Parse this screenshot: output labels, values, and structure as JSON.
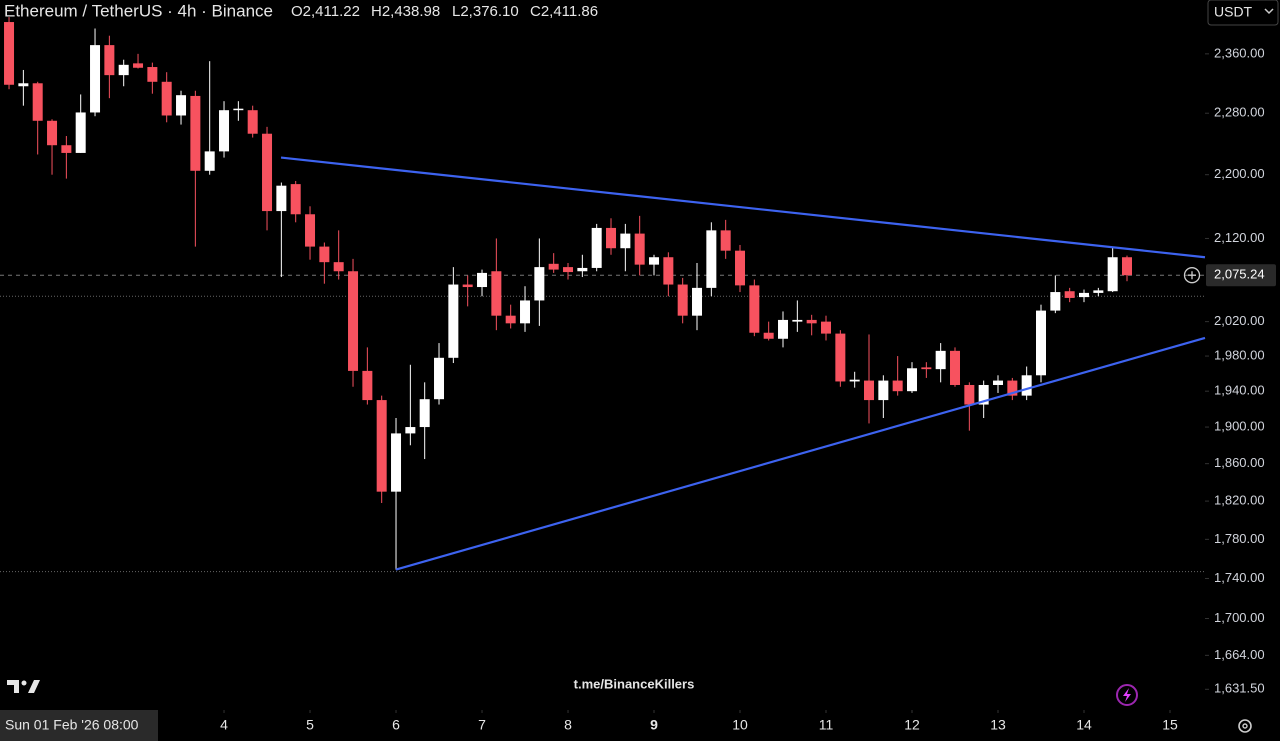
{
  "chart_data": {
    "type": "candlestick",
    "title": "Ethereum / TetherUS · 4h · Binance",
    "ohlc_header": [
      "O2,411.22",
      "H2,438.98",
      "L2,376.10",
      "C2,411.86"
    ],
    "currency": "USDT",
    "watermark": "t.me/BinanceKillers",
    "crosshair_date": "Sun 01 Feb '26 08:00",
    "log_scale": true,
    "up_color": "#ffffff",
    "down_color": "#f7525f",
    "x": [
      1.5,
      1.6667,
      1.8333,
      2,
      2.1667,
      2.3333,
      2.5,
      2.6667,
      2.8333,
      3,
      3.1667,
      3.3333,
      3.5,
      3.6667,
      3.8333,
      4,
      4.1667,
      4.3333,
      4.5,
      4.6667,
      4.8333,
      5,
      5.1667,
      5.3333,
      5.5,
      5.6667,
      5.8333,
      6,
      6.1667,
      6.3333,
      6.5,
      6.6667,
      6.8333,
      7,
      7.1667,
      7.3333,
      7.5,
      7.6667,
      7.8333,
      8,
      8.1667,
      8.3333,
      8.5,
      8.6667,
      8.8333,
      9,
      9.1667,
      9.3333,
      9.5,
      9.6667,
      9.8333,
      10,
      10.1667,
      10.3333,
      10.5,
      10.6667,
      10.8333,
      11,
      11.1667,
      11.3333,
      11.5,
      11.6667,
      11.8333,
      12,
      12.1667,
      12.3333,
      12.5,
      12.6667,
      12.8333,
      13,
      13.1667,
      13.3333,
      13.5,
      13.6667,
      13.8333,
      14,
      14.1667,
      14.3333,
      14.5
    ],
    "open": [
      2404,
      2316,
      2320,
      2270,
      2238,
      2228,
      2281,
      2372,
      2331,
      2347,
      2342,
      2322,
      2277,
      2303,
      2205,
      2230,
      2284,
      2284,
      2253,
      2154,
      2188,
      2150,
      2110,
      2091,
      2080,
      1963,
      1930,
      1830,
      1893,
      1900,
      1931,
      1978,
      2064,
      2061,
      2080,
      2027,
      2018,
      2045,
      2089,
      2085,
      2080,
      2084,
      2133,
      2108,
      2126,
      2088,
      2097,
      2064,
      2027,
      2060,
      2130,
      2105,
      2063,
      2007,
      2000,
      2020,
      2022,
      2020,
      2006,
      1951,
      1952,
      1930,
      1952,
      1940,
      1967,
      1965,
      1986,
      1947,
      1925,
      1947,
      1952,
      1935,
      1958,
      2033,
      2056,
      2049,
      2054,
      2056,
      2097
    ],
    "high": [
      2411,
      2338,
      2322,
      2272,
      2250,
      2305,
      2395,
      2385,
      2352,
      2360,
      2348,
      2335,
      2310,
      2310,
      2350,
      2296,
      2296,
      2290,
      2262,
      2190,
      2192,
      2160,
      2115,
      2130,
      2095,
      1990,
      1935,
      1910,
      1970,
      1950,
      1995,
      2085,
      2075,
      2082,
      2120,
      2040,
      2062,
      2120,
      2102,
      2090,
      2100,
      2138,
      2145,
      2138,
      2148,
      2100,
      2103,
      2072,
      2090,
      2140,
      2143,
      2112,
      2070,
      2020,
      2032,
      2045,
      2028,
      2027,
      2010,
      1962,
      2005,
      1958,
      1980,
      1973,
      1973,
      1995,
      1990,
      1950,
      1952,
      1958,
      1955,
      1968,
      2040,
      2075,
      2060,
      2058,
      2060,
      2110,
      2099
    ],
    "low": [
      2312,
      2290,
      2226,
      2200,
      2195,
      2228,
      2276,
      2300,
      2316,
      2340,
      2306,
      2268,
      2265,
      2110,
      2200,
      2222,
      2270,
      2248,
      2130,
      2073,
      2140,
      2094,
      2065,
      2070,
      1945,
      1925,
      1818,
      1749,
      1880,
      1865,
      1925,
      1972,
      2038,
      2050,
      2010,
      2012,
      2008,
      2015,
      2078,
      2070,
      2073,
      2080,
      2100,
      2080,
      2075,
      2075,
      2050,
      2018,
      2010,
      2050,
      2095,
      2055,
      2003,
      1998,
      1990,
      2008,
      2004,
      1998,
      1945,
      1944,
      1904,
      1910,
      1935,
      1938,
      1955,
      1950,
      1945,
      1896,
      1910,
      1938,
      1930,
      1930,
      1950,
      2030,
      2043,
      2043,
      2050,
      2055,
      2068
    ],
    "close": [
      2318,
      2320,
      2270,
      2238,
      2228,
      2281,
      2372,
      2331,
      2345,
      2341,
      2322,
      2277,
      2304,
      2205,
      2230,
      2284,
      2286,
      2253,
      2154,
      2186,
      2150,
      2110,
      2091,
      2080,
      1963,
      1930,
      1830,
      1893,
      1900,
      1931,
      1978,
      2064,
      2061,
      2078,
      2027,
      2018,
      2045,
      2085,
      2082,
      2079,
      2084,
      2133,
      2108,
      2126,
      2088,
      2097,
      2064,
      2027,
      2060,
      2130,
      2105,
      2063,
      2007,
      2000,
      2022,
      2022,
      2018,
      2006,
      1951,
      1953,
      1930,
      1952,
      1940,
      1966,
      1965,
      1986,
      1947,
      1925,
      1947,
      1952,
      1935,
      1958,
      2033,
      2055,
      2048,
      2054,
      2057,
      2097,
      2075.24
    ],
    "xlim": [
      1.395,
      15.407
    ],
    "xticks": [
      4,
      5,
      6,
      7,
      8,
      9,
      10,
      11,
      12,
      13,
      14,
      15
    ],
    "xtick_bold": 9,
    "ylim": [
      1612,
      2435
    ],
    "yticks": [
      {
        "value": 2360,
        "label": "2,360.00"
      },
      {
        "value": 2280,
        "label": "2,280.00"
      },
      {
        "value": 2200,
        "label": "2,200.00"
      },
      {
        "value": 2120,
        "label": "2,120.00"
      },
      {
        "value": 2020,
        "label": "2,020.00"
      },
      {
        "value": 1980,
        "label": "1,980.00"
      },
      {
        "value": 1940,
        "label": "1,940.00"
      },
      {
        "value": 1900,
        "label": "1,900.00"
      },
      {
        "value": 1860,
        "label": "1,860.00"
      },
      {
        "value": 1820,
        "label": "1,820.00"
      },
      {
        "value": 1780,
        "label": "1,780.00"
      },
      {
        "value": 1740,
        "label": "1,740.00"
      },
      {
        "value": 1700,
        "label": "1,700.00"
      },
      {
        "value": 1664,
        "label": "1,664.00"
      },
      {
        "value": 1631.5,
        "label": "1,631.50"
      }
    ],
    "last_price": {
      "value": 2075.24,
      "label": "2,075.24"
    },
    "horizontal_lines": [
      2050,
      1747
    ],
    "trendlines": {
      "color": "#3d63f0",
      "lines": [
        {
          "x": [
            4.663,
            15.407
          ],
          "y": [
            2222,
            2097
          ]
        },
        {
          "x": [
            6,
            15.407
          ],
          "y": [
            1749,
            2001
          ]
        }
      ]
    }
  }
}
